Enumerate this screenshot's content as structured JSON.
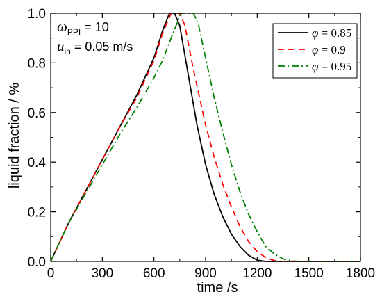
{
  "chart_data": {
    "type": "line",
    "xlabel": "time /s",
    "ylabel": "liquid fraction / %",
    "xlim": [
      0,
      1800
    ],
    "ylim": [
      0.0,
      1.0
    ],
    "xticks": [
      "0",
      "300",
      "600",
      "900",
      "1200",
      "1500",
      "1800"
    ],
    "yticks": [
      "0.0",
      "0.2",
      "0.4",
      "0.6",
      "0.8",
      "1.0"
    ],
    "annotations": {
      "omega_symbol": "ω",
      "omega_sub": "PPI",
      "omega_rest": " = 10",
      "u_symbol": "u",
      "u_sub": "in",
      "u_rest": " = 0.05 m/s"
    },
    "legend_position": "top-right",
    "series": [
      {
        "name": "φ = 0.85",
        "symbol": "φ",
        "value_text": " = 0.85",
        "color": "#000000",
        "dash": "none",
        "points": [
          [
            0,
            0
          ],
          [
            100,
            0.15
          ],
          [
            200,
            0.28
          ],
          [
            300,
            0.41
          ],
          [
            400,
            0.54
          ],
          [
            500,
            0.67
          ],
          [
            600,
            0.82
          ],
          [
            650,
            0.93
          ],
          [
            690,
            1.0
          ],
          [
            720,
            1.0
          ],
          [
            750,
            0.95
          ],
          [
            800,
            0.75
          ],
          [
            850,
            0.55
          ],
          [
            900,
            0.39
          ],
          [
            950,
            0.27
          ],
          [
            1000,
            0.18
          ],
          [
            1050,
            0.11
          ],
          [
            1100,
            0.06
          ],
          [
            1150,
            0.025
          ],
          [
            1200,
            0.005
          ],
          [
            1250,
            0
          ],
          [
            1800,
            0
          ]
        ]
      },
      {
        "name": "φ = 0.9",
        "symbol": "φ",
        "value_text": " = 0.9",
        "color": "#ff0000",
        "dash": "9,6",
        "points": [
          [
            0,
            0
          ],
          [
            100,
            0.15
          ],
          [
            200,
            0.28
          ],
          [
            300,
            0.41
          ],
          [
            400,
            0.54
          ],
          [
            500,
            0.66
          ],
          [
            600,
            0.81
          ],
          [
            650,
            0.92
          ],
          [
            700,
            1.0
          ],
          [
            750,
            1.0
          ],
          [
            780,
            0.95
          ],
          [
            830,
            0.77
          ],
          [
            900,
            0.55
          ],
          [
            950,
            0.42
          ],
          [
            1000,
            0.31
          ],
          [
            1050,
            0.22
          ],
          [
            1100,
            0.14
          ],
          [
            1150,
            0.08
          ],
          [
            1200,
            0.04
          ],
          [
            1250,
            0.015
          ],
          [
            1300,
            0.003
          ],
          [
            1350,
            0
          ],
          [
            1800,
            0
          ]
        ]
      },
      {
        "name": "φ = 0.95",
        "symbol": "φ",
        "value_text": " = 0.95",
        "color": "#008000",
        "dash": "10,4,2,4",
        "points": [
          [
            0,
            0
          ],
          [
            100,
            0.15
          ],
          [
            200,
            0.27
          ],
          [
            300,
            0.39
          ],
          [
            400,
            0.51
          ],
          [
            500,
            0.62
          ],
          [
            600,
            0.74
          ],
          [
            650,
            0.81
          ],
          [
            700,
            0.9
          ],
          [
            740,
            0.97
          ],
          [
            760,
            1.0
          ],
          [
            830,
            1.0
          ],
          [
            860,
            0.95
          ],
          [
            900,
            0.82
          ],
          [
            950,
            0.66
          ],
          [
            1000,
            0.52
          ],
          [
            1050,
            0.39
          ],
          [
            1100,
            0.28
          ],
          [
            1150,
            0.19
          ],
          [
            1200,
            0.12
          ],
          [
            1250,
            0.06
          ],
          [
            1300,
            0.03
          ],
          [
            1350,
            0.01
          ],
          [
            1400,
            0.002
          ],
          [
            1450,
            0
          ],
          [
            1800,
            0
          ]
        ]
      }
    ]
  }
}
